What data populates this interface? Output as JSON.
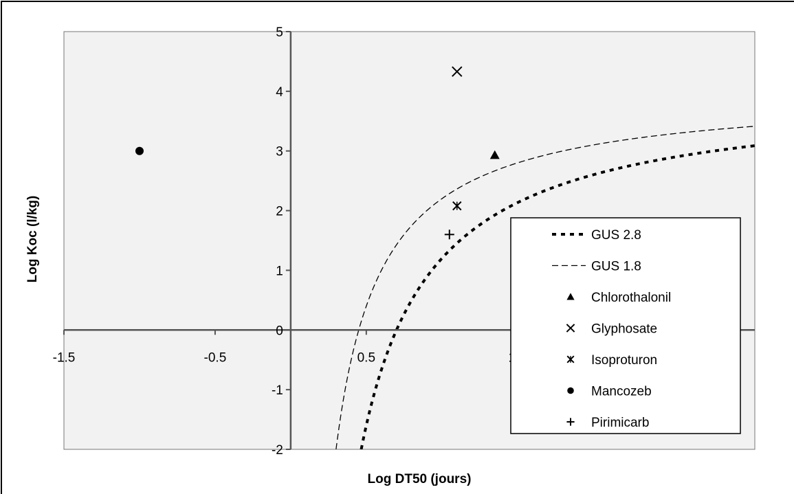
{
  "chart_data": {
    "type": "scatter",
    "title": "",
    "xlabel": "Log DT50 (jours)",
    "ylabel": "Log Koc (l/kg)",
    "xlim": [
      -1.5,
      3.07
    ],
    "ylim": [
      -2,
      5
    ],
    "x_ticks": [
      -1.5,
      -0.5,
      0.5,
      1.5
    ],
    "x_tick_labels": [
      "-1.5",
      "-0.5",
      "0.5",
      "1.5"
    ],
    "y_ticks": [
      -2,
      -1,
      0,
      1,
      2,
      3,
      4,
      5
    ],
    "y_tick_labels": [
      "-2",
      "-1",
      "0",
      "1",
      "2",
      "3",
      "4",
      "5"
    ],
    "grid": false,
    "plot_background": "#f2f2f2",
    "legend_position": "right",
    "curves": [
      {
        "name": "GUS 2.8",
        "gus": 2.8,
        "style": "dotted-bold",
        "color": "#000000"
      },
      {
        "name": "GUS 1.8",
        "gus": 1.8,
        "style": "dashed-thin",
        "color": "#000000"
      }
    ],
    "series": [
      {
        "name": "Chlorothalonil",
        "marker": "triangle",
        "points": [
          {
            "x": 1.35,
            "y": 2.93
          }
        ]
      },
      {
        "name": "Glyphosate",
        "marker": "x",
        "points": [
          {
            "x": 1.1,
            "y": 4.33
          }
        ]
      },
      {
        "name": "Isoproturon",
        "marker": "star",
        "points": [
          {
            "x": 1.1,
            "y": 2.08
          }
        ]
      },
      {
        "name": "Mancozeb",
        "marker": "circle",
        "points": [
          {
            "x": -1.0,
            "y": 3.0
          }
        ]
      },
      {
        "name": "Pirimicarb",
        "marker": "plus",
        "points": [
          {
            "x": 1.05,
            "y": 1.6
          }
        ]
      }
    ]
  }
}
